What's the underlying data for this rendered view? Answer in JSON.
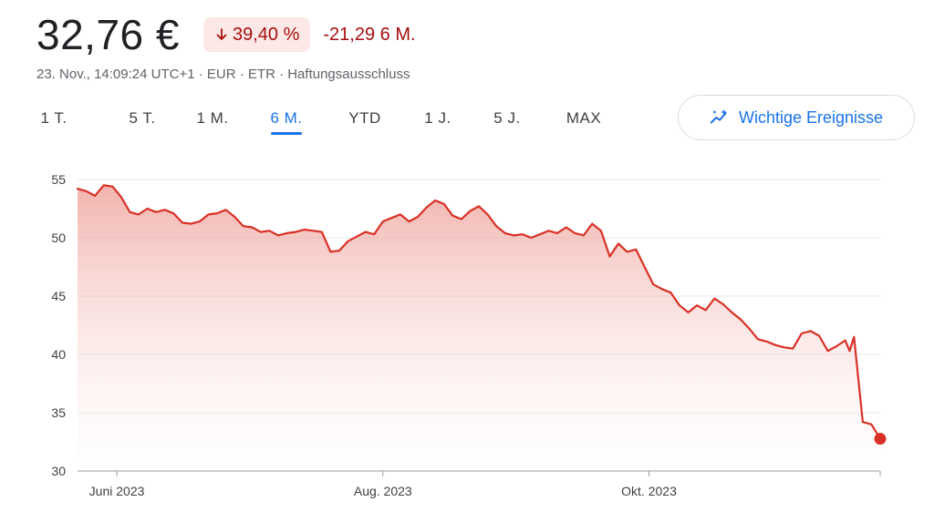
{
  "quote": {
    "price": "32,76 €",
    "change_percent": "39,40 %",
    "change_abs": "-21,29",
    "period": "6 M.",
    "subline": "23. Nov., 14:09:24 UTC+1 · EUR · ETR · Haftungsausschluss"
  },
  "tabs": [
    {
      "label": "1 T.",
      "active": false
    },
    {
      "label": "5 T.",
      "active": false
    },
    {
      "label": "1 M.",
      "active": false
    },
    {
      "label": "6 M.",
      "active": true
    },
    {
      "label": "YTD",
      "active": false
    },
    {
      "label": "1 J.",
      "active": false
    },
    {
      "label": "5 J.",
      "active": false
    },
    {
      "label": "MAX",
      "active": false
    }
  ],
  "events_button": {
    "label": "Wichtige Ereignisse",
    "icon": "sparkle-trend-icon"
  },
  "colors": {
    "line": "#d93025",
    "negative": "#a50e0e",
    "accent": "#1a73e8"
  },
  "chart_data": {
    "type": "area",
    "title": "",
    "xlabel": "",
    "ylabel": "",
    "ylim": [
      30,
      55
    ],
    "y_ticks": [
      30,
      35,
      40,
      45,
      50,
      55
    ],
    "x_ticks": [
      {
        "label": "Juni 2023",
        "date": "2023-06-01"
      },
      {
        "label": "Aug. 2023",
        "date": "2023-08-01"
      },
      {
        "label": "Okt. 2023",
        "date": "2023-10-01"
      }
    ],
    "grid": true,
    "points": [
      [
        "2023-05-23",
        54.2
      ],
      [
        "2023-05-25",
        54.0
      ],
      [
        "2023-05-27",
        53.6
      ],
      [
        "2023-05-29",
        54.5
      ],
      [
        "2023-05-31",
        54.4
      ],
      [
        "2023-06-02",
        53.5
      ],
      [
        "2023-06-04",
        52.2
      ],
      [
        "2023-06-06",
        52.0
      ],
      [
        "2023-06-08",
        52.5
      ],
      [
        "2023-06-10",
        52.2
      ],
      [
        "2023-06-12",
        52.4
      ],
      [
        "2023-06-14",
        52.1
      ],
      [
        "2023-06-16",
        51.3
      ],
      [
        "2023-06-18",
        51.2
      ],
      [
        "2023-06-20",
        51.4
      ],
      [
        "2023-06-22",
        52.0
      ],
      [
        "2023-06-24",
        52.1
      ],
      [
        "2023-06-26",
        52.4
      ],
      [
        "2023-06-28",
        51.8
      ],
      [
        "2023-06-30",
        51.0
      ],
      [
        "2023-07-02",
        50.9
      ],
      [
        "2023-07-04",
        50.5
      ],
      [
        "2023-07-06",
        50.6
      ],
      [
        "2023-07-08",
        50.2
      ],
      [
        "2023-07-10",
        50.4
      ],
      [
        "2023-07-12",
        50.5
      ],
      [
        "2023-07-14",
        50.7
      ],
      [
        "2023-07-16",
        50.6
      ],
      [
        "2023-07-18",
        50.5
      ],
      [
        "2023-07-20",
        48.8
      ],
      [
        "2023-07-22",
        48.9
      ],
      [
        "2023-07-24",
        49.7
      ],
      [
        "2023-07-26",
        50.1
      ],
      [
        "2023-07-28",
        50.5
      ],
      [
        "2023-07-30",
        50.3
      ],
      [
        "2023-08-01",
        51.4
      ],
      [
        "2023-08-03",
        51.7
      ],
      [
        "2023-08-05",
        52.0
      ],
      [
        "2023-08-07",
        51.4
      ],
      [
        "2023-08-09",
        51.8
      ],
      [
        "2023-08-11",
        52.6
      ],
      [
        "2023-08-13",
        53.2
      ],
      [
        "2023-08-15",
        52.9
      ],
      [
        "2023-08-17",
        51.9
      ],
      [
        "2023-08-19",
        51.6
      ],
      [
        "2023-08-21",
        52.3
      ],
      [
        "2023-08-23",
        52.7
      ],
      [
        "2023-08-25",
        52.0
      ],
      [
        "2023-08-27",
        51.0
      ],
      [
        "2023-08-29",
        50.4
      ],
      [
        "2023-08-31",
        50.2
      ],
      [
        "2023-09-02",
        50.3
      ],
      [
        "2023-09-04",
        50.0
      ],
      [
        "2023-09-06",
        50.3
      ],
      [
        "2023-09-08",
        50.6
      ],
      [
        "2023-09-10",
        50.4
      ],
      [
        "2023-09-12",
        50.9
      ],
      [
        "2023-09-14",
        50.4
      ],
      [
        "2023-09-16",
        50.2
      ],
      [
        "2023-09-18",
        51.2
      ],
      [
        "2023-09-20",
        50.6
      ],
      [
        "2023-09-22",
        48.4
      ],
      [
        "2023-09-24",
        49.5
      ],
      [
        "2023-09-26",
        48.8
      ],
      [
        "2023-09-28",
        49.0
      ],
      [
        "2023-09-30",
        47.5
      ],
      [
        "2023-10-02",
        46.0
      ],
      [
        "2023-10-04",
        45.6
      ],
      [
        "2023-10-06",
        45.3
      ],
      [
        "2023-10-08",
        44.2
      ],
      [
        "2023-10-10",
        43.6
      ],
      [
        "2023-10-12",
        44.2
      ],
      [
        "2023-10-14",
        43.8
      ],
      [
        "2023-10-16",
        44.8
      ],
      [
        "2023-10-18",
        44.3
      ],
      [
        "2023-10-20",
        43.6
      ],
      [
        "2023-10-22",
        43.0
      ],
      [
        "2023-10-24",
        42.2
      ],
      [
        "2023-10-26",
        41.3
      ],
      [
        "2023-10-28",
        41.1
      ],
      [
        "2023-10-30",
        40.8
      ],
      [
        "2023-11-01",
        40.6
      ],
      [
        "2023-11-03",
        40.5
      ],
      [
        "2023-11-05",
        41.8
      ],
      [
        "2023-11-07",
        42.0
      ],
      [
        "2023-11-09",
        41.6
      ],
      [
        "2023-11-11",
        40.3
      ],
      [
        "2023-11-13",
        40.7
      ],
      [
        "2023-11-15",
        41.2
      ],
      [
        "2023-11-16",
        40.3
      ],
      [
        "2023-11-17",
        41.5
      ],
      [
        "2023-11-19",
        34.2
      ],
      [
        "2023-11-21",
        34.0
      ],
      [
        "2023-11-23",
        32.76
      ]
    ]
  }
}
